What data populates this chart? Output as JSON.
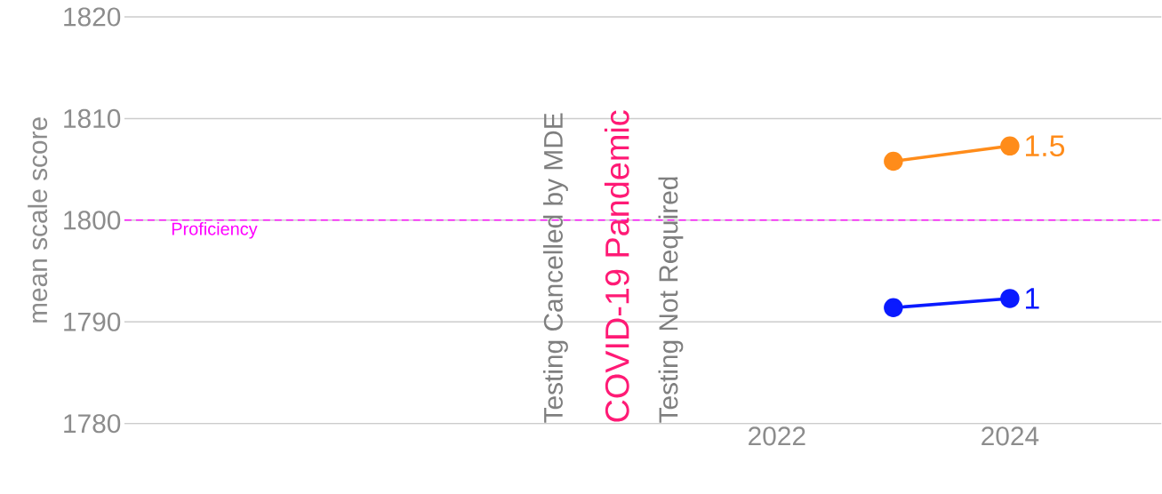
{
  "chart_data": {
    "type": "line",
    "ylabel": "mean scale score",
    "x": [
      2023,
      2024
    ],
    "series": [
      {
        "name": "1.5",
        "color": "#ff8c1a",
        "values": [
          1805.8,
          1807.3
        ]
      },
      {
        "name": "1",
        "color": "#0a1aff",
        "values": [
          1791.4,
          1792.3
        ]
      }
    ],
    "xlim": [
      2016.4,
      2025.3
    ],
    "ylim": [
      1780,
      1820
    ],
    "xticks": [
      2022,
      2024
    ],
    "yticks": [
      1780,
      1790,
      1800,
      1810,
      1820
    ],
    "grid": "y",
    "legend": false,
    "marker": "circle",
    "line_style": "solid",
    "ref_lines": [
      {
        "axis": "y",
        "value": 1800,
        "label": "Proficiency",
        "color": "#ff00ff",
        "line_style": "dashed"
      }
    ],
    "annotations": [
      "Testing Cancelled by MDE",
      "COVID-19 Pandemic",
      "Testing Not Required"
    ]
  }
}
